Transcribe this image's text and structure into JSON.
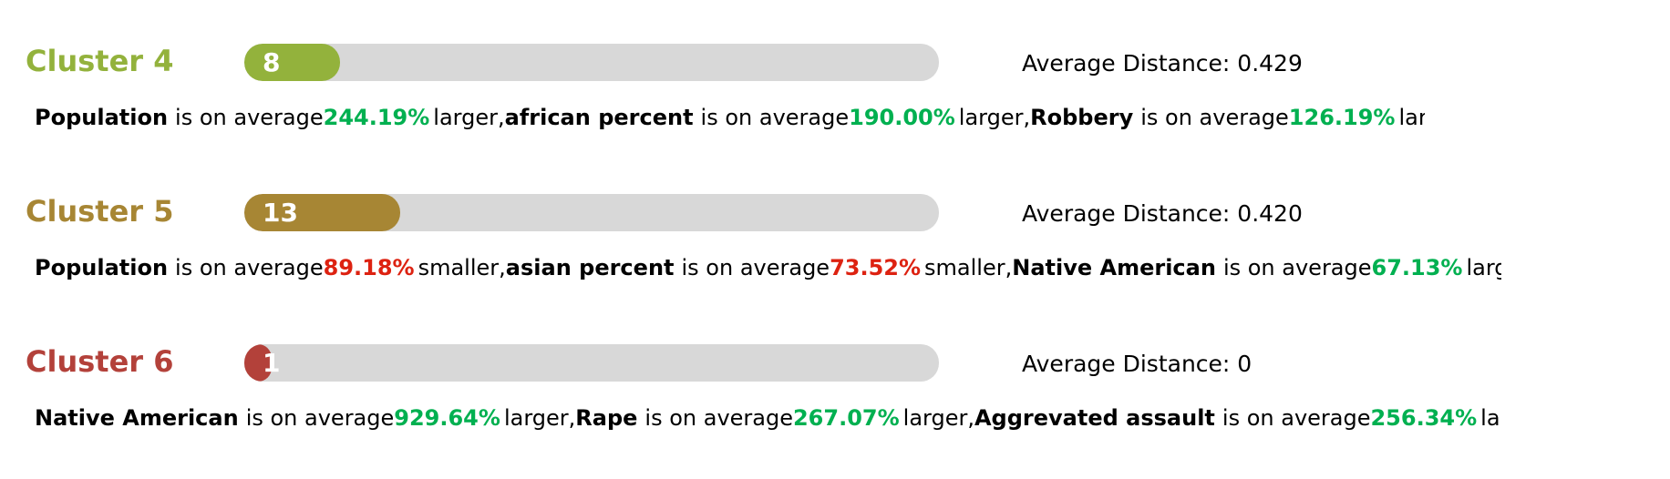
{
  "clusters": [
    {
      "title": "Cluster 4",
      "color": "#93b23c",
      "count": "8",
      "fill_fraction": 0.138,
      "avg_distance_label": "Average Distance: ",
      "avg_distance_value": "0.429",
      "summary_width": 1525,
      "facts": [
        {
          "attribute": "Population",
          "connector": "is on average",
          "percent": "244.19%",
          "direction": "up",
          "comparison": "larger",
          "separator": ","
        },
        {
          "attribute": "african percent",
          "connector": "is on average",
          "percent": "190.00%",
          "direction": "up",
          "comparison": "larger",
          "separator": ","
        },
        {
          "attribute": "Robbery",
          "connector": "is on average",
          "percent": "126.19%",
          "direction": "up",
          "comparison": "larger",
          "separator": ""
        }
      ]
    },
    {
      "title": "Cluster 5",
      "color": "#a78634",
      "count": "13",
      "fill_fraction": 0.225,
      "avg_distance_label": "Average Distance: ",
      "avg_distance_value": "0.420",
      "summary_width": 1609,
      "facts": [
        {
          "attribute": "Population",
          "connector": "is on average",
          "percent": "89.18%",
          "direction": "down",
          "comparison": "smaller",
          "separator": ","
        },
        {
          "attribute": "asian percent",
          "connector": "is on average",
          "percent": "73.52%",
          "direction": "down",
          "comparison": "smaller",
          "separator": ","
        },
        {
          "attribute": "Native American",
          "connector": "is on average",
          "percent": "67.13%",
          "direction": "up",
          "comparison": "larger",
          "separator": ""
        }
      ]
    },
    {
      "title": "Cluster 6",
      "color": "#b3413a",
      "count": "1",
      "fill_fraction": 0.04,
      "avg_distance_label": "Average Distance: ",
      "avg_distance_value": "0",
      "summary_width": 1606,
      "facts": [
        {
          "attribute": "Native American",
          "connector": "is on average",
          "percent": "929.64%",
          "direction": "up",
          "comparison": "larger",
          "separator": ","
        },
        {
          "attribute": "Rape",
          "connector": "is on average",
          "percent": "267.07%",
          "direction": "up",
          "comparison": "larger",
          "separator": ","
        },
        {
          "attribute": "Aggrevated assault",
          "connector": "is on average",
          "percent": "256.34%",
          "direction": "up",
          "comparison": "larger",
          "separator": ""
        }
      ]
    }
  ]
}
